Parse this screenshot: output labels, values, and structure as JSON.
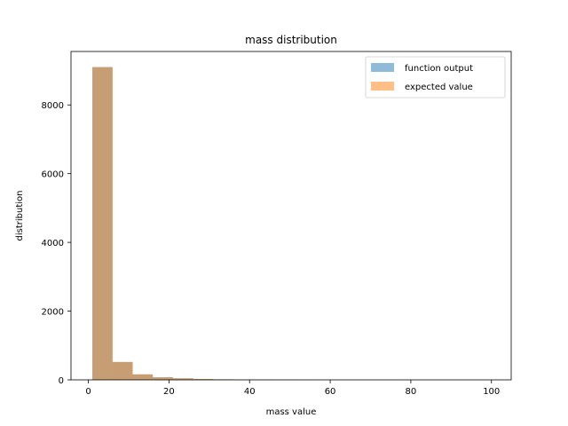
{
  "chart_data": {
    "type": "bar",
    "title": "mass distribution",
    "xlabel": "mass value",
    "ylabel": "distribution",
    "xlim": [
      -4.3,
      104.9
    ],
    "ylim": [
      0,
      9555
    ],
    "xticks": [
      0,
      20,
      40,
      60,
      80,
      100
    ],
    "yticks": [
      0,
      2000,
      4000,
      6000,
      8000
    ],
    "bin_edges": [
      1,
      6,
      11,
      16,
      21,
      26,
      31,
      36,
      41,
      46,
      51,
      56,
      61,
      66,
      71,
      76,
      81,
      86,
      91,
      96,
      101
    ],
    "series": [
      {
        "name": "function output",
        "color": "#1f77b4",
        "opacity": 0.5,
        "values": [
          9100,
          520,
          160,
          75,
          45,
          25,
          15,
          10,
          12,
          5,
          3,
          2,
          1,
          1,
          1,
          0,
          0,
          0,
          0,
          0
        ]
      },
      {
        "name": "expected value",
        "color": "#ff7f0e",
        "opacity": 0.5,
        "values": [
          9100,
          520,
          160,
          75,
          45,
          25,
          15,
          10,
          5,
          4,
          3,
          2,
          1,
          1,
          1,
          0,
          0,
          0,
          0,
          0
        ]
      }
    ],
    "legend_position": "top-right",
    "grid": false
  }
}
